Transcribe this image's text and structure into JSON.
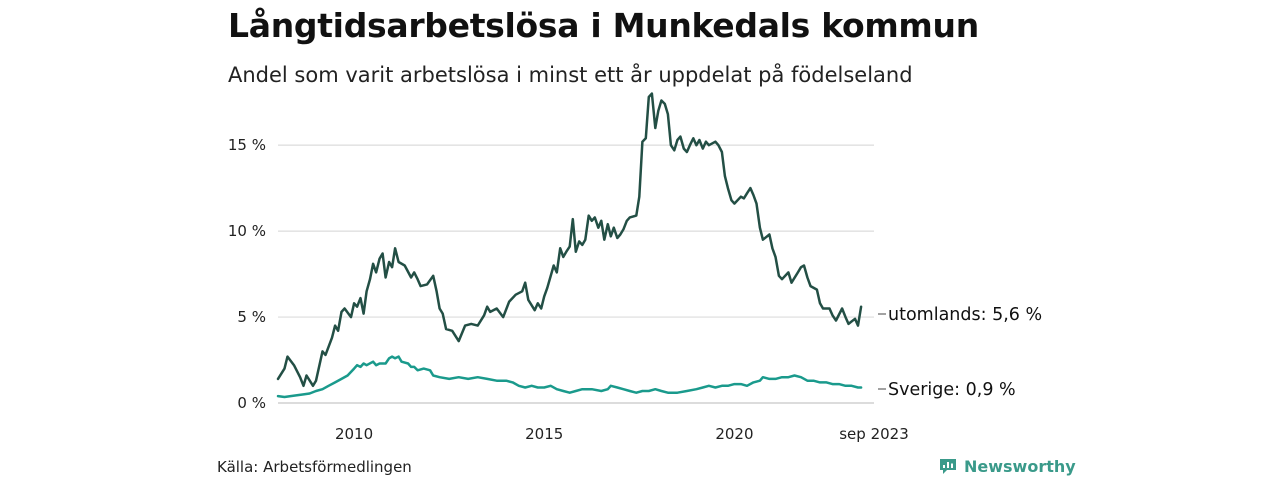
{
  "chart_data": {
    "type": "line",
    "title": "Långtidsarbetslösa i Munkedals kommun",
    "subtitle": "Andel som varit arbetslösa i minst ett år uppdelat på födelseland",
    "source": "Källa: Arbetsförmedlingen",
    "brand": "Newsworthy",
    "ylim": [
      0,
      18.5
    ],
    "xlim": [
      2008.0,
      2023.67
    ],
    "y_ticks": [
      {
        "value": 0,
        "label": "0 %"
      },
      {
        "value": 5,
        "label": "5 %"
      },
      {
        "value": 10,
        "label": "10 %"
      },
      {
        "value": 15,
        "label": "15 %"
      }
    ],
    "x_ticks": [
      {
        "value": 2010,
        "label": "2010"
      },
      {
        "value": 2015,
        "label": "2015"
      },
      {
        "value": 2020,
        "label": "2020"
      },
      {
        "value": 2023.67,
        "label": "sep 2023"
      }
    ],
    "grid": true,
    "series": [
      {
        "name": "utomlands",
        "end_label": "utomlands: 5,6 %",
        "color": "#234f45",
        "points": [
          [
            2008.0,
            1.4
          ],
          [
            2008.17,
            2.0
          ],
          [
            2008.25,
            2.7
          ],
          [
            2008.42,
            2.2
          ],
          [
            2008.58,
            1.5
          ],
          [
            2008.67,
            1.0
          ],
          [
            2008.75,
            1.6
          ],
          [
            2008.92,
            1.0
          ],
          [
            2009.0,
            1.3
          ],
          [
            2009.17,
            3.0
          ],
          [
            2009.25,
            2.8
          ],
          [
            2009.42,
            3.8
          ],
          [
            2009.5,
            4.5
          ],
          [
            2009.58,
            4.2
          ],
          [
            2009.67,
            5.3
          ],
          [
            2009.75,
            5.5
          ],
          [
            2009.92,
            5.0
          ],
          [
            2010.0,
            5.8
          ],
          [
            2010.08,
            5.6
          ],
          [
            2010.17,
            6.1
          ],
          [
            2010.25,
            5.2
          ],
          [
            2010.33,
            6.5
          ],
          [
            2010.42,
            7.2
          ],
          [
            2010.5,
            8.1
          ],
          [
            2010.58,
            7.6
          ],
          [
            2010.67,
            8.4
          ],
          [
            2010.75,
            8.7
          ],
          [
            2010.83,
            7.3
          ],
          [
            2010.92,
            8.2
          ],
          [
            2011.0,
            7.9
          ],
          [
            2011.08,
            9.0
          ],
          [
            2011.17,
            8.2
          ],
          [
            2011.33,
            8.0
          ],
          [
            2011.5,
            7.3
          ],
          [
            2011.58,
            7.6
          ],
          [
            2011.67,
            7.2
          ],
          [
            2011.75,
            6.8
          ],
          [
            2011.92,
            6.9
          ],
          [
            2012.08,
            7.4
          ],
          [
            2012.17,
            6.5
          ],
          [
            2012.25,
            5.5
          ],
          [
            2012.33,
            5.2
          ],
          [
            2012.42,
            4.3
          ],
          [
            2012.58,
            4.2
          ],
          [
            2012.75,
            3.6
          ],
          [
            2012.92,
            4.5
          ],
          [
            2013.08,
            4.6
          ],
          [
            2013.25,
            4.5
          ],
          [
            2013.42,
            5.1
          ],
          [
            2013.5,
            5.6
          ],
          [
            2013.58,
            5.3
          ],
          [
            2013.75,
            5.5
          ],
          [
            2013.92,
            5.0
          ],
          [
            2014.08,
            5.9
          ],
          [
            2014.25,
            6.3
          ],
          [
            2014.42,
            6.5
          ],
          [
            2014.5,
            7.0
          ],
          [
            2014.58,
            6.0
          ],
          [
            2014.75,
            5.4
          ],
          [
            2014.83,
            5.8
          ],
          [
            2014.92,
            5.5
          ],
          [
            2015.0,
            6.2
          ],
          [
            2015.08,
            6.7
          ],
          [
            2015.25,
            8.0
          ],
          [
            2015.33,
            7.6
          ],
          [
            2015.42,
            9.0
          ],
          [
            2015.5,
            8.5
          ],
          [
            2015.58,
            8.8
          ],
          [
            2015.67,
            9.1
          ],
          [
            2015.75,
            10.7
          ],
          [
            2015.83,
            8.8
          ],
          [
            2015.92,
            9.4
          ],
          [
            2016.0,
            9.2
          ],
          [
            2016.08,
            9.5
          ],
          [
            2016.17,
            10.9
          ],
          [
            2016.25,
            10.6
          ],
          [
            2016.33,
            10.8
          ],
          [
            2016.42,
            10.2
          ],
          [
            2016.5,
            10.6
          ],
          [
            2016.58,
            9.5
          ],
          [
            2016.67,
            10.4
          ],
          [
            2016.75,
            9.7
          ],
          [
            2016.83,
            10.2
          ],
          [
            2016.92,
            9.6
          ],
          [
            2017.0,
            9.8
          ],
          [
            2017.08,
            10.1
          ],
          [
            2017.17,
            10.6
          ],
          [
            2017.25,
            10.8
          ],
          [
            2017.42,
            10.9
          ],
          [
            2017.5,
            12.0
          ],
          [
            2017.58,
            15.2
          ],
          [
            2017.67,
            15.4
          ],
          [
            2017.75,
            17.8
          ],
          [
            2017.83,
            18.0
          ],
          [
            2017.92,
            16.0
          ],
          [
            2018.0,
            17.0
          ],
          [
            2018.08,
            17.6
          ],
          [
            2018.17,
            17.4
          ],
          [
            2018.25,
            16.8
          ],
          [
            2018.33,
            15.0
          ],
          [
            2018.42,
            14.7
          ],
          [
            2018.5,
            15.3
          ],
          [
            2018.58,
            15.5
          ],
          [
            2018.67,
            14.8
          ],
          [
            2018.75,
            14.6
          ],
          [
            2018.83,
            15.0
          ],
          [
            2018.92,
            15.4
          ],
          [
            2019.0,
            15.0
          ],
          [
            2019.08,
            15.3
          ],
          [
            2019.17,
            14.8
          ],
          [
            2019.25,
            15.2
          ],
          [
            2019.33,
            15.0
          ],
          [
            2019.5,
            15.2
          ],
          [
            2019.58,
            15.0
          ],
          [
            2019.67,
            14.6
          ],
          [
            2019.75,
            13.2
          ],
          [
            2019.83,
            12.5
          ],
          [
            2019.92,
            11.8
          ],
          [
            2020.0,
            11.6
          ],
          [
            2020.17,
            12.0
          ],
          [
            2020.25,
            11.9
          ],
          [
            2020.33,
            12.2
          ],
          [
            2020.42,
            12.5
          ],
          [
            2020.5,
            12.1
          ],
          [
            2020.58,
            11.6
          ],
          [
            2020.67,
            10.2
          ],
          [
            2020.75,
            9.5
          ],
          [
            2020.92,
            9.8
          ],
          [
            2021.0,
            9.0
          ],
          [
            2021.08,
            8.5
          ],
          [
            2021.17,
            7.4
          ],
          [
            2021.25,
            7.2
          ],
          [
            2021.42,
            7.6
          ],
          [
            2021.5,
            7.0
          ],
          [
            2021.67,
            7.6
          ],
          [
            2021.75,
            7.9
          ],
          [
            2021.83,
            8.0
          ],
          [
            2021.92,
            7.3
          ],
          [
            2022.0,
            6.8
          ],
          [
            2022.17,
            6.6
          ],
          [
            2022.25,
            5.8
          ],
          [
            2022.33,
            5.5
          ],
          [
            2022.5,
            5.5
          ],
          [
            2022.58,
            5.1
          ],
          [
            2022.67,
            4.8
          ],
          [
            2022.83,
            5.5
          ],
          [
            2022.92,
            5.0
          ],
          [
            2023.0,
            4.6
          ],
          [
            2023.17,
            4.9
          ],
          [
            2023.25,
            4.5
          ],
          [
            2023.33,
            5.6
          ]
        ]
      },
      {
        "name": "Sverige",
        "end_label": "Sverige: 0,9 %",
        "color": "#1a9a8c",
        "points": [
          [
            2008.0,
            0.4
          ],
          [
            2008.17,
            0.35
          ],
          [
            2008.33,
            0.4
          ],
          [
            2008.5,
            0.45
          ],
          [
            2008.67,
            0.5
          ],
          [
            2008.83,
            0.55
          ],
          [
            2009.0,
            0.7
          ],
          [
            2009.17,
            0.8
          ],
          [
            2009.33,
            1.0
          ],
          [
            2009.5,
            1.2
          ],
          [
            2009.67,
            1.4
          ],
          [
            2009.83,
            1.6
          ],
          [
            2010.0,
            2.0
          ],
          [
            2010.08,
            2.2
          ],
          [
            2010.17,
            2.1
          ],
          [
            2010.25,
            2.3
          ],
          [
            2010.33,
            2.2
          ],
          [
            2010.5,
            2.4
          ],
          [
            2010.58,
            2.2
          ],
          [
            2010.67,
            2.3
          ],
          [
            2010.83,
            2.3
          ],
          [
            2010.92,
            2.6
          ],
          [
            2011.0,
            2.7
          ],
          [
            2011.08,
            2.6
          ],
          [
            2011.17,
            2.7
          ],
          [
            2011.25,
            2.4
          ],
          [
            2011.42,
            2.3
          ],
          [
            2011.5,
            2.1
          ],
          [
            2011.58,
            2.1
          ],
          [
            2011.67,
            1.9
          ],
          [
            2011.83,
            2.0
          ],
          [
            2012.0,
            1.9
          ],
          [
            2012.08,
            1.6
          ],
          [
            2012.25,
            1.5
          ],
          [
            2012.5,
            1.4
          ],
          [
            2012.75,
            1.5
          ],
          [
            2013.0,
            1.4
          ],
          [
            2013.25,
            1.5
          ],
          [
            2013.5,
            1.4
          ],
          [
            2013.75,
            1.3
          ],
          [
            2014.0,
            1.3
          ],
          [
            2014.17,
            1.2
          ],
          [
            2014.33,
            1.0
          ],
          [
            2014.5,
            0.9
          ],
          [
            2014.67,
            1.0
          ],
          [
            2014.83,
            0.9
          ],
          [
            2015.0,
            0.9
          ],
          [
            2015.17,
            1.0
          ],
          [
            2015.33,
            0.8
          ],
          [
            2015.5,
            0.7
          ],
          [
            2015.67,
            0.6
          ],
          [
            2015.83,
            0.7
          ],
          [
            2016.0,
            0.8
          ],
          [
            2016.25,
            0.8
          ],
          [
            2016.5,
            0.7
          ],
          [
            2016.67,
            0.8
          ],
          [
            2016.75,
            1.0
          ],
          [
            2016.92,
            0.9
          ],
          [
            2017.08,
            0.8
          ],
          [
            2017.25,
            0.7
          ],
          [
            2017.42,
            0.6
          ],
          [
            2017.58,
            0.7
          ],
          [
            2017.75,
            0.7
          ],
          [
            2017.92,
            0.8
          ],
          [
            2018.08,
            0.7
          ],
          [
            2018.25,
            0.6
          ],
          [
            2018.5,
            0.6
          ],
          [
            2018.75,
            0.7
          ],
          [
            2019.0,
            0.8
          ],
          [
            2019.17,
            0.9
          ],
          [
            2019.33,
            1.0
          ],
          [
            2019.5,
            0.9
          ],
          [
            2019.67,
            1.0
          ],
          [
            2019.83,
            1.0
          ],
          [
            2020.0,
            1.1
          ],
          [
            2020.17,
            1.1
          ],
          [
            2020.33,
            1.0
          ],
          [
            2020.5,
            1.2
          ],
          [
            2020.67,
            1.3
          ],
          [
            2020.75,
            1.5
          ],
          [
            2020.92,
            1.4
          ],
          [
            2021.08,
            1.4
          ],
          [
            2021.25,
            1.5
          ],
          [
            2021.42,
            1.5
          ],
          [
            2021.58,
            1.6
          ],
          [
            2021.75,
            1.5
          ],
          [
            2021.92,
            1.3
          ],
          [
            2022.08,
            1.3
          ],
          [
            2022.25,
            1.2
          ],
          [
            2022.42,
            1.2
          ],
          [
            2022.58,
            1.1
          ],
          [
            2022.75,
            1.1
          ],
          [
            2022.92,
            1.0
          ],
          [
            2023.08,
            1.0
          ],
          [
            2023.25,
            0.9
          ],
          [
            2023.33,
            0.9
          ]
        ]
      }
    ]
  }
}
